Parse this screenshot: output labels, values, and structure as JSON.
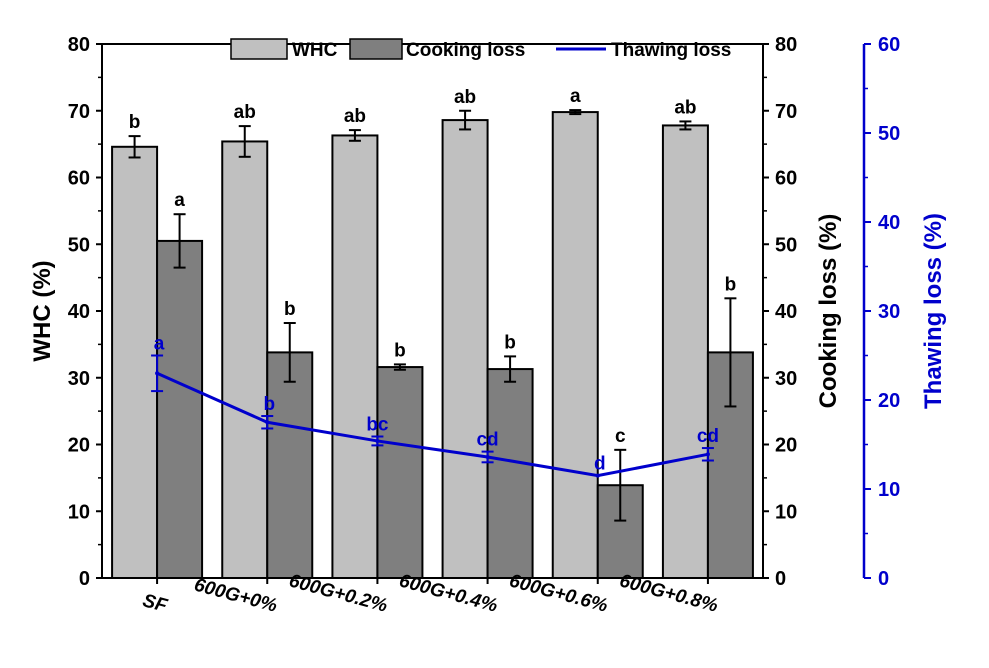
{
  "chart_data": {
    "type": "bar",
    "categories": [
      "SF",
      "600G+0%",
      "600G+0.2%",
      "600G+0.4%",
      "600G+0.6%",
      "600G+0.8%"
    ],
    "series": [
      {
        "name": "WHC",
        "axis": "left",
        "kind": "bar",
        "color": "#c0c0c0",
        "values": [
          64.6,
          65.4,
          66.3,
          68.6,
          69.8,
          67.8
        ],
        "errors": [
          1.6,
          2.3,
          0.8,
          1.4,
          0.3,
          0.6
        ],
        "labels": [
          "b",
          "ab",
          "ab",
          "ab",
          "a",
          "ab"
        ]
      },
      {
        "name": "Cooking loss",
        "axis": "right",
        "kind": "bar",
        "color": "#7f7f7f",
        "values": [
          50.5,
          33.8,
          31.6,
          31.3,
          13.9,
          33.8
        ],
        "errors": [
          4.0,
          4.4,
          0.4,
          1.9,
          5.3,
          8.1
        ],
        "labels": [
          "a",
          "b",
          "b",
          "b",
          "c",
          "b"
        ]
      },
      {
        "name": "Thawing loss",
        "axis": "right2",
        "kind": "line",
        "color": "#0000cc",
        "values": [
          23.0,
          17.5,
          15.4,
          13.6,
          11.5,
          13.9
        ],
        "errors": [
          2.0,
          0.7,
          0.5,
          0.6,
          0.0,
          0.7
        ],
        "labels": [
          "a",
          "b",
          "bc",
          "cd",
          "d",
          "cd"
        ]
      }
    ],
    "axes": {
      "left": {
        "label": "WHC (%)",
        "range": [
          0,
          80
        ],
        "ticks": [
          0,
          10,
          20,
          30,
          40,
          50,
          60,
          70,
          80
        ]
      },
      "right": {
        "label": "Cooking loss (%)",
        "range": [
          0,
          80
        ],
        "ticks": [
          0,
          10,
          20,
          30,
          40,
          50,
          60,
          70,
          80
        ]
      },
      "right2": {
        "label": "Thawing loss (%)",
        "range": [
          0,
          60
        ],
        "ticks": [
          0,
          10,
          20,
          30,
          40,
          50,
          60
        ]
      }
    },
    "legend": {
      "position": "top",
      "entries": [
        "WHC",
        "Cooking loss",
        "Thawing loss"
      ]
    },
    "colors": {
      "whc": "#c0c0c0",
      "cooking": "#7f7f7f",
      "thawing": "#0000cc",
      "axis_right2": "#0000cc"
    }
  }
}
